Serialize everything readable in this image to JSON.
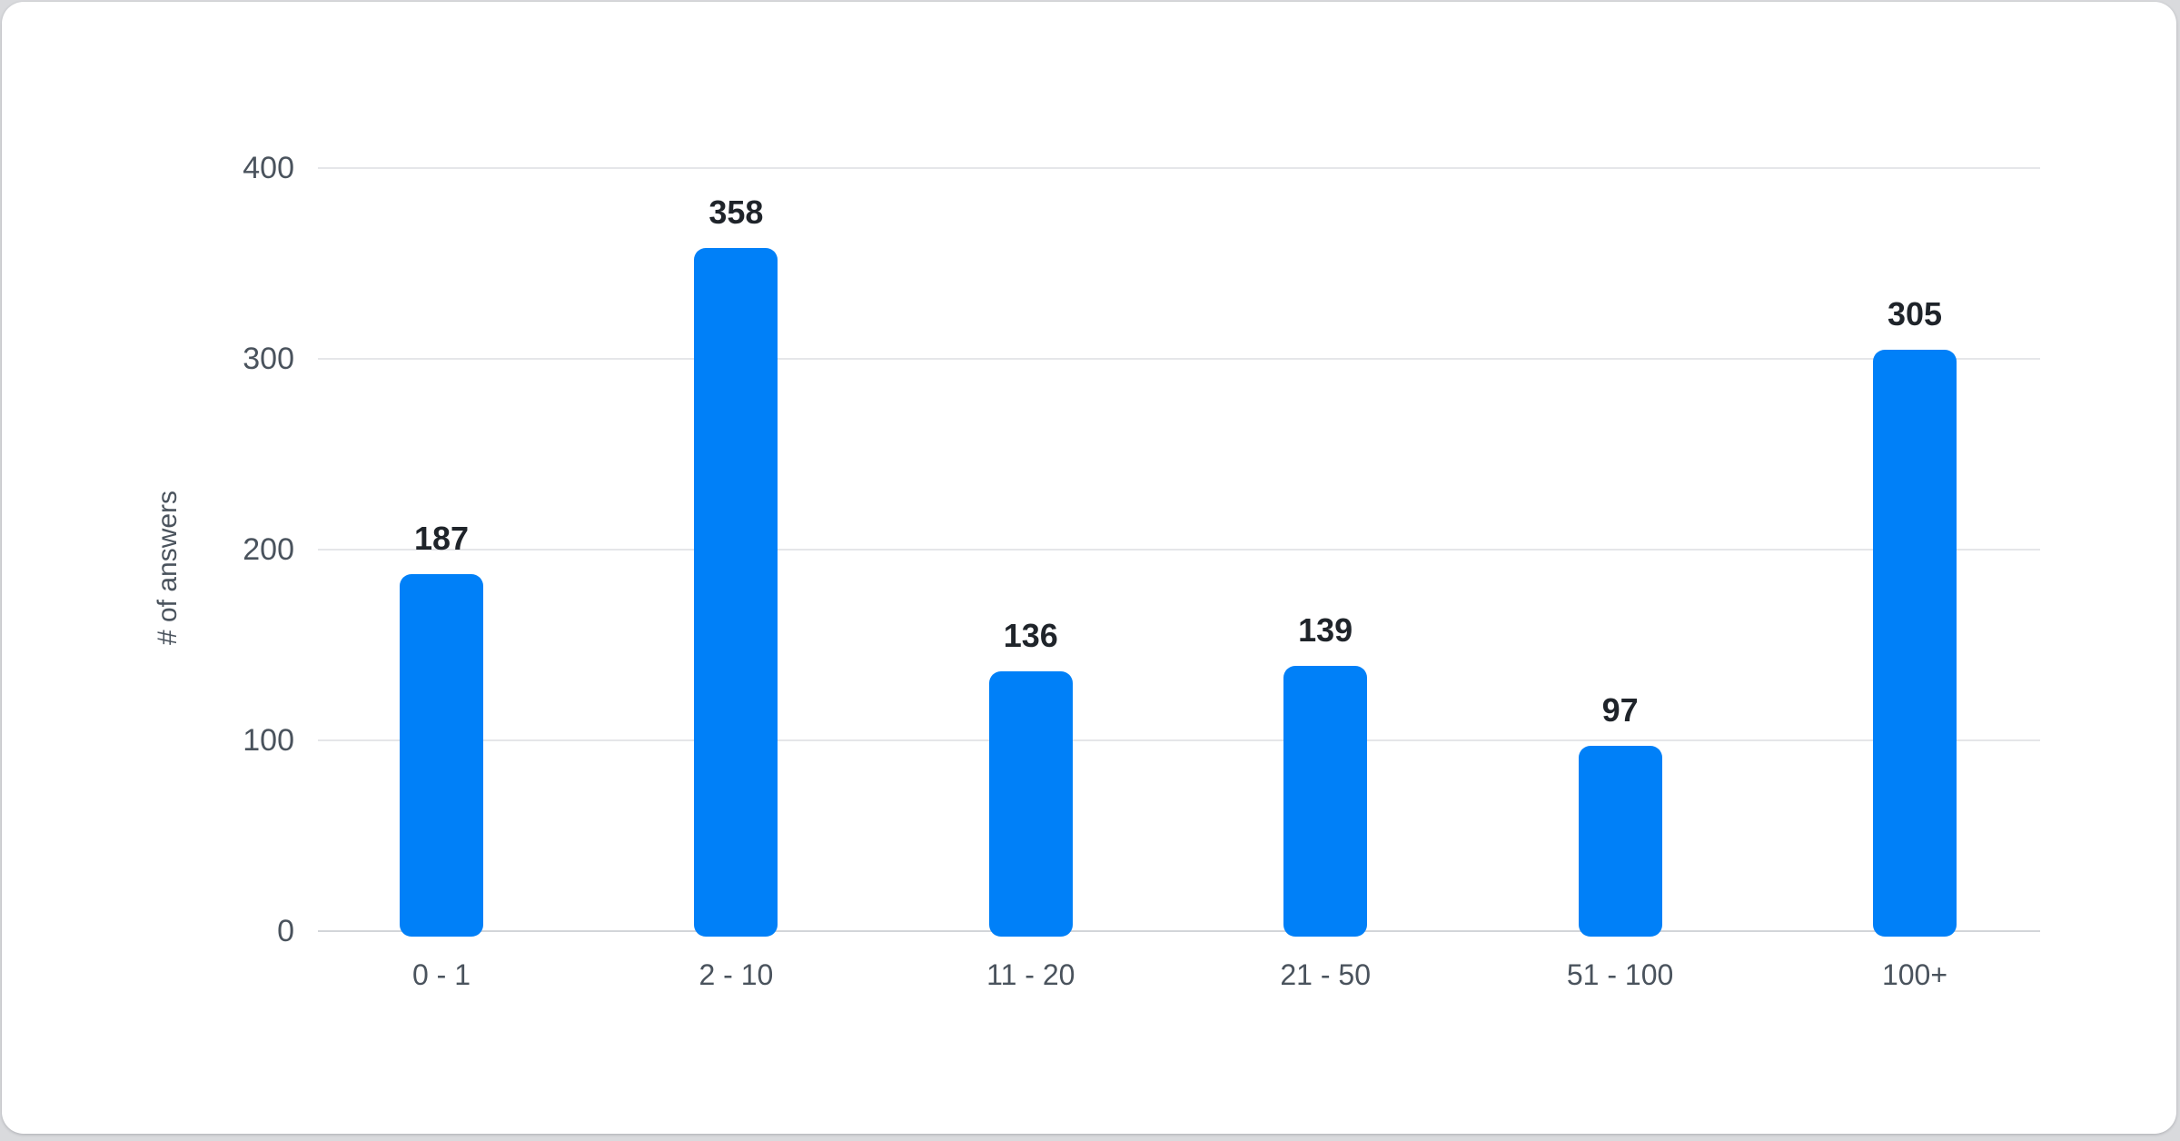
{
  "window": {
    "background": "#d9dadd",
    "card_background": "#ffffff"
  },
  "chart_data": {
    "type": "bar",
    "title": "",
    "xlabel": "",
    "ylabel": "# of answers",
    "categories": [
      "0 - 1",
      "2 - 10",
      "11 - 20",
      "21 - 50",
      "51 - 100",
      "100+"
    ],
    "values": [
      187,
      358,
      136,
      139,
      97,
      305
    ],
    "value_labels": [
      "187",
      "358",
      "136",
      "139",
      "97",
      "305"
    ],
    "ylim": [
      0,
      400
    ],
    "yticks": [
      0,
      100,
      200,
      300,
      400
    ],
    "ytick_labels": [
      "0",
      "100",
      "200",
      "300",
      "400"
    ],
    "grid": true,
    "legend": false,
    "colors": {
      "bar": "#0080f8",
      "value_label": "#1f242a",
      "axis_text": "#4a535d",
      "gridline": "#e5e6e9",
      "baseline": "#d2d5d9"
    }
  }
}
